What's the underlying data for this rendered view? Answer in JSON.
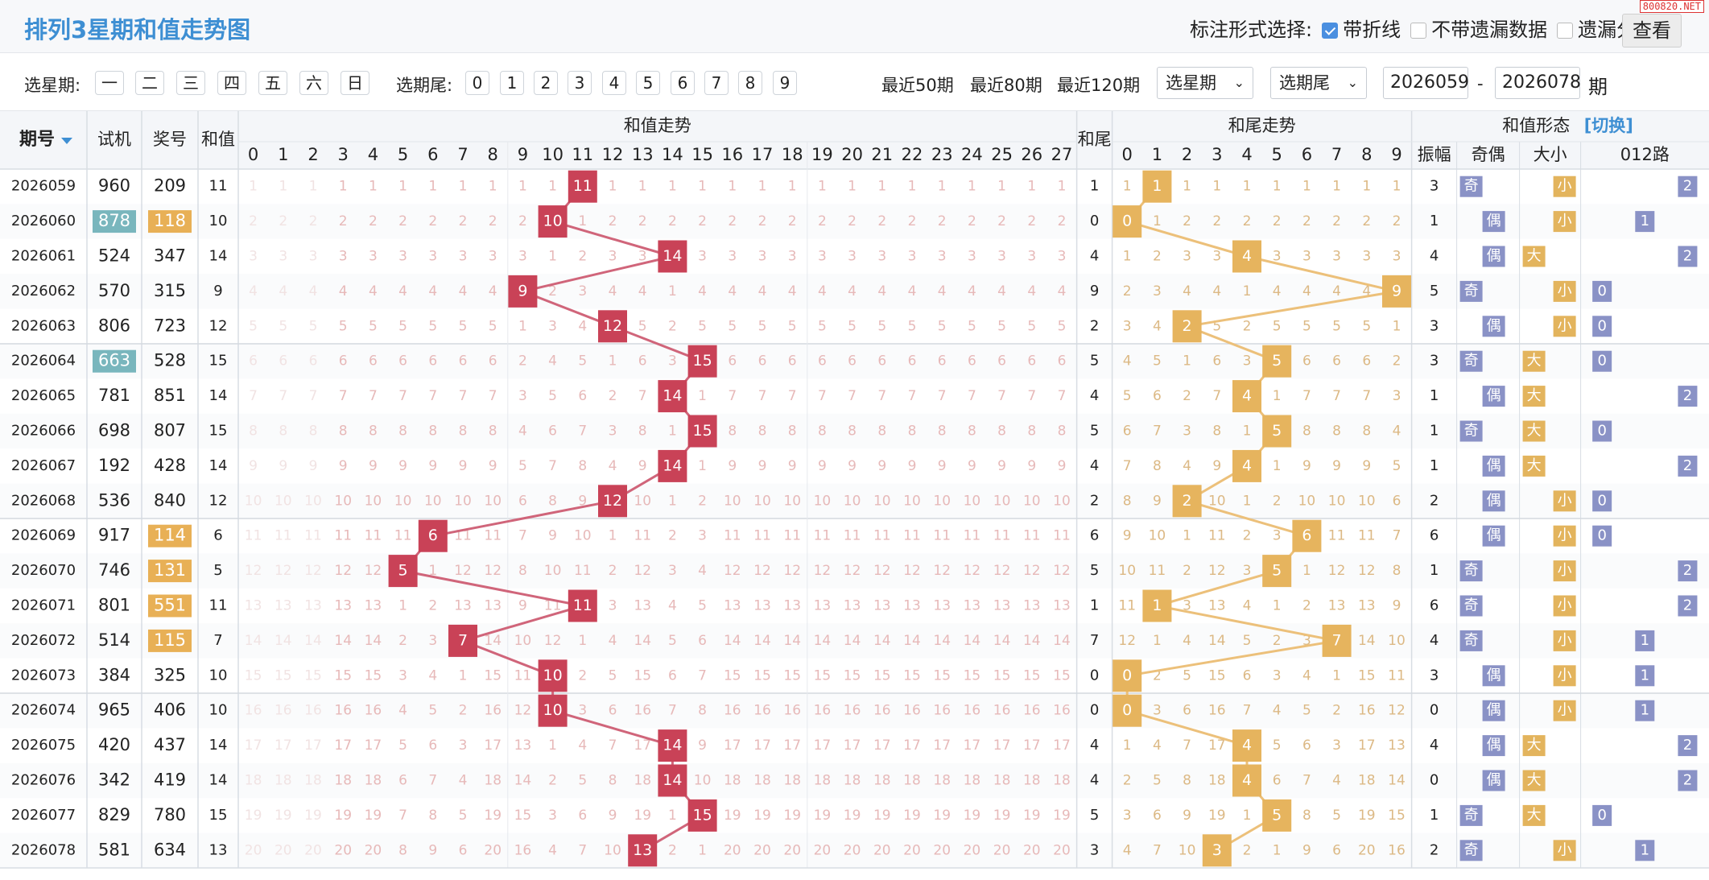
{
  "title": "排列3星期和值走势图",
  "watermark": "800820.NET",
  "mode": {
    "label": "标注形式选择:",
    "opt_line": "带折线",
    "opt_nomiss": "不带遗漏数据",
    "opt_layer": "遗漏分层"
  },
  "toolbar": {
    "weekday_label": "选星期:",
    "weekdays": [
      "一",
      "二",
      "三",
      "四",
      "五",
      "六",
      "日"
    ],
    "tail_label": "选期尾:",
    "tails": [
      "0",
      "1",
      "2",
      "3",
      "4",
      "5",
      "6",
      "7",
      "8",
      "9"
    ],
    "recent50": "最近50期",
    "recent80": "最近80期",
    "recent120": "最近120期",
    "select_week": "选星期",
    "select_tail": "选期尾",
    "from": "2026059",
    "dash": "-",
    "to": "2026078",
    "unit": "期",
    "query": "查看"
  },
  "table": {
    "h_issue": "期号",
    "h_test": "试机",
    "h_draw": "奖号",
    "h_sum": "和值",
    "h_sum_trend": "和值走势",
    "h_tail": "和尾",
    "h_tail_trend": "和尾走势",
    "h_form": "和值形态",
    "h_switch": "[切换]",
    "h_amp": "振幅",
    "h_oe": "奇偶",
    "h_bs": "大小",
    "h_012": "012路",
    "sum_cols": [
      "0",
      "1",
      "2",
      "3",
      "4",
      "5",
      "6",
      "7",
      "8",
      "9",
      "10",
      "11",
      "12",
      "13",
      "14",
      "15",
      "16",
      "17",
      "18",
      "19",
      "20",
      "21",
      "22",
      "23",
      "24",
      "25",
      "26",
      "27"
    ],
    "tail_cols": [
      "0",
      "1",
      "2",
      "3",
      "4",
      "5",
      "6",
      "7",
      "8",
      "9"
    ],
    "rows": [
      {
        "issue": "2026059",
        "test": "960",
        "draw": "209",
        "sum": "11",
        "tail": "1",
        "amp": "3",
        "oe": "奇",
        "bs": "小",
        "r012": "2",
        "test_hl": "",
        "draw_hl": ""
      },
      {
        "issue": "2026060",
        "test": "878",
        "draw": "118",
        "sum": "10",
        "tail": "0",
        "amp": "1",
        "oe": "偶",
        "bs": "小",
        "r012": "1",
        "test_hl": "teal",
        "draw_hl": "orange"
      },
      {
        "issue": "2026061",
        "test": "524",
        "draw": "347",
        "sum": "14",
        "tail": "4",
        "amp": "4",
        "oe": "偶",
        "bs": "大",
        "r012": "2",
        "test_hl": "",
        "draw_hl": ""
      },
      {
        "issue": "2026062",
        "test": "570",
        "draw": "315",
        "sum": "9",
        "tail": "9",
        "amp": "5",
        "oe": "奇",
        "bs": "小",
        "r012": "0",
        "test_hl": "",
        "draw_hl": ""
      },
      {
        "issue": "2026063",
        "test": "806",
        "draw": "723",
        "sum": "12",
        "tail": "2",
        "amp": "3",
        "oe": "偶",
        "bs": "小",
        "r012": "0",
        "test_hl": "",
        "draw_hl": ""
      },
      {
        "issue": "2026064",
        "test": "663",
        "draw": "528",
        "sum": "15",
        "tail": "5",
        "amp": "3",
        "oe": "奇",
        "bs": "大",
        "r012": "0",
        "test_hl": "teal",
        "draw_hl": ""
      },
      {
        "issue": "2026065",
        "test": "781",
        "draw": "851",
        "sum": "14",
        "tail": "4",
        "amp": "1",
        "oe": "偶",
        "bs": "大",
        "r012": "2",
        "test_hl": "",
        "draw_hl": ""
      },
      {
        "issue": "2026066",
        "test": "698",
        "draw": "807",
        "sum": "15",
        "tail": "5",
        "amp": "1",
        "oe": "奇",
        "bs": "大",
        "r012": "0",
        "test_hl": "",
        "draw_hl": ""
      },
      {
        "issue": "2026067",
        "test": "192",
        "draw": "428",
        "sum": "14",
        "tail": "4",
        "amp": "1",
        "oe": "偶",
        "bs": "大",
        "r012": "2",
        "test_hl": "",
        "draw_hl": ""
      },
      {
        "issue": "2026068",
        "test": "536",
        "draw": "840",
        "sum": "12",
        "tail": "2",
        "amp": "2",
        "oe": "偶",
        "bs": "小",
        "r012": "0",
        "test_hl": "",
        "draw_hl": ""
      },
      {
        "issue": "2026069",
        "test": "917",
        "draw": "114",
        "sum": "6",
        "tail": "6",
        "amp": "6",
        "oe": "偶",
        "bs": "小",
        "r012": "0",
        "test_hl": "",
        "draw_hl": "orange"
      },
      {
        "issue": "2026070",
        "test": "746",
        "draw": "131",
        "sum": "5",
        "tail": "5",
        "amp": "1",
        "oe": "奇",
        "bs": "小",
        "r012": "2",
        "test_hl": "",
        "draw_hl": "orange"
      },
      {
        "issue": "2026071",
        "test": "801",
        "draw": "551",
        "sum": "11",
        "tail": "1",
        "amp": "6",
        "oe": "奇",
        "bs": "小",
        "r012": "2",
        "test_hl": "",
        "draw_hl": "orange"
      },
      {
        "issue": "2026072",
        "test": "514",
        "draw": "115",
        "sum": "7",
        "tail": "7",
        "amp": "4",
        "oe": "奇",
        "bs": "小",
        "r012": "1",
        "test_hl": "",
        "draw_hl": "orange"
      },
      {
        "issue": "2026073",
        "test": "384",
        "draw": "325",
        "sum": "10",
        "tail": "0",
        "amp": "3",
        "oe": "偶",
        "bs": "小",
        "r012": "1",
        "test_hl": "",
        "draw_hl": ""
      },
      {
        "issue": "2026074",
        "test": "965",
        "draw": "406",
        "sum": "10",
        "tail": "0",
        "amp": "0",
        "oe": "偶",
        "bs": "小",
        "r012": "1",
        "test_hl": "",
        "draw_hl": ""
      },
      {
        "issue": "2026075",
        "test": "420",
        "draw": "437",
        "sum": "14",
        "tail": "4",
        "amp": "4",
        "oe": "偶",
        "bs": "大",
        "r012": "2",
        "test_hl": "",
        "draw_hl": ""
      },
      {
        "issue": "2026076",
        "test": "342",
        "draw": "419",
        "sum": "14",
        "tail": "4",
        "amp": "0",
        "oe": "偶",
        "bs": "大",
        "r012": "2",
        "test_hl": "",
        "draw_hl": ""
      },
      {
        "issue": "2026077",
        "test": "829",
        "draw": "780",
        "sum": "15",
        "tail": "5",
        "amp": "1",
        "oe": "奇",
        "bs": "大",
        "r012": "0",
        "test_hl": "",
        "draw_hl": ""
      },
      {
        "issue": "2026078",
        "test": "581",
        "draw": "634",
        "sum": "13",
        "tail": "3",
        "amp": "2",
        "oe": "奇",
        "bs": "小",
        "r012": "1",
        "test_hl": "",
        "draw_hl": ""
      }
    ]
  },
  "colors": {
    "sum_ball": "#c94257",
    "tail_ball": "#e6b45e",
    "teal": "#79b6bd",
    "orange": "#e8b056",
    "oe_odd": "#8a92c6",
    "oe_even": "#8a92c6",
    "bs": "#e3b45d",
    "r012": "#8a92c6",
    "accent": "#3e8fd3"
  }
}
